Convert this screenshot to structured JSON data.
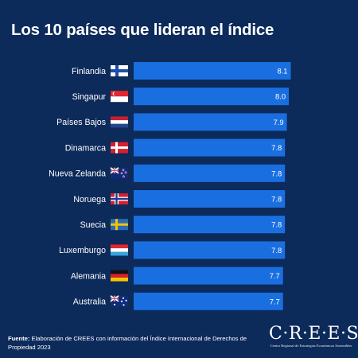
{
  "header": {
    "title": "Los 10 países que lideran el índice"
  },
  "chart_data": {
    "type": "bar",
    "orientation": "horizontal",
    "title": "Los 10 países que lideran el índice",
    "categories": [
      "Finlandia",
      "Singapur",
      "Países Bajos",
      "Dinamarca",
      "Nueva Zelanda",
      "Noruega",
      "Suecia",
      "Luxemburgo",
      "Alemania",
      "Australia"
    ],
    "values": [
      8.1,
      8.0,
      7.9,
      7.8,
      7.8,
      7.8,
      7.8,
      7.8,
      7.7,
      7.7
    ],
    "value_labels": [
      "8.1",
      "8.0",
      "7.9",
      "7.8",
      "7.8",
      "7.8",
      "7.8",
      "7.8",
      "7.7",
      "7.7"
    ],
    "flag_icons": [
      "finland-flag-icon",
      "singapore-flag-icon",
      "netherlands-flag-icon",
      "denmark-flag-icon",
      "new-zealand-flag-icon",
      "norway-flag-icon",
      "sweden-flag-icon",
      "luxembourg-flag-icon",
      "germany-flag-icon",
      "australia-flag-icon"
    ],
    "bar_color": "#1a6fe0",
    "background_color": "#0c2a5a",
    "grid": false,
    "legend": "none"
  },
  "footer": {
    "source_label": "Fuente:",
    "source_text": "Elaboración de CREES con información del Índice Internacional de Derechos de Propiedad 2023"
  },
  "logo": {
    "wordmark": "C·R·E·E·S",
    "subtitle": "Centro Regional de Estrategias Económicas Sostenibles"
  }
}
